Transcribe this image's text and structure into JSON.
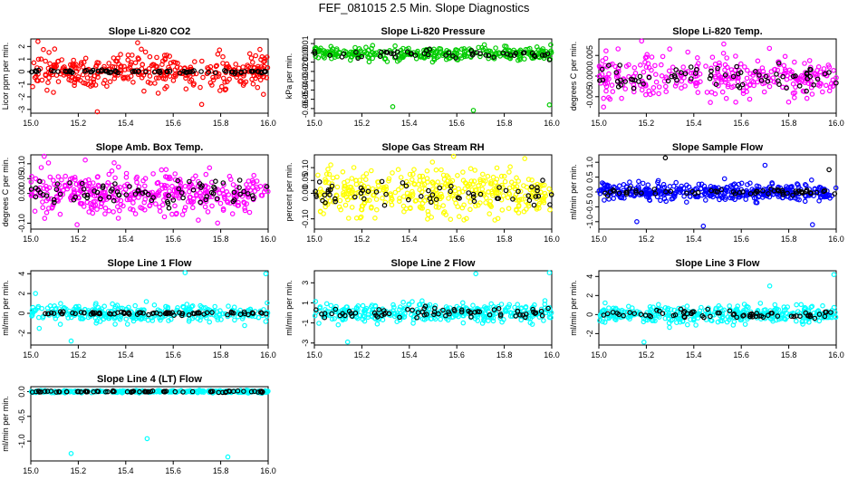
{
  "title": "FEF_081015  2.5 Min. Slope Diagnostics",
  "colors": {
    "red": "#ff0000",
    "green": "#00cc00",
    "magenta": "#ff00ff",
    "yellow": "#ffff00",
    "blue": "#0000ff",
    "cyan": "#00ffff",
    "black": "#000000"
  },
  "chart_data": [
    {
      "type": "scatter",
      "title": "Slope Li-820 CO2",
      "ylabel": "Licor ppm per min.",
      "xlim": [
        15.0,
        16.0
      ],
      "ylim": [
        -3.3,
        2.6
      ],
      "xticks": [
        15.0,
        15.2,
        15.4,
        15.6,
        15.8,
        16.0
      ],
      "yticks": [
        -3,
        -2,
        -1,
        0,
        1,
        2
      ],
      "point_color": "red",
      "series": [
        {
          "name": "all",
          "color": "red",
          "n": 350,
          "center": 0.0,
          "spread": 1.2,
          "outliers": [
            [
              15.03,
              2.4
            ],
            [
              15.28,
              -3.2
            ],
            [
              15.45,
              2.3
            ],
            [
              15.72,
              -2.6
            ],
            [
              15.98,
              -1.8
            ]
          ]
        },
        {
          "name": "subset",
          "color": "black",
          "n": 80,
          "center": 0.0,
          "spread": 0.12,
          "outliers": []
        }
      ]
    },
    {
      "type": "scatter",
      "title": "Slope Li-820 Pressure",
      "ylabel": "kPa per min.",
      "xlim": [
        15.0,
        16.0
      ],
      "ylim": [
        -0.065,
        0.015
      ],
      "xticks": [
        15.0,
        15.2,
        15.4,
        15.6,
        15.8,
        16.0
      ],
      "yticks": [
        -0.06,
        -0.05,
        -0.04,
        -0.03,
        -0.02,
        -0.01,
        0.0,
        0.01
      ],
      "point_color": "green",
      "series": [
        {
          "name": "all",
          "color": "green",
          "n": 300,
          "center": -0.001,
          "spread": 0.006,
          "outliers": [
            [
              15.33,
              -0.058
            ],
            [
              15.67,
              -0.062
            ],
            [
              15.99,
              -0.056
            ]
          ]
        },
        {
          "name": "subset",
          "color": "black",
          "n": 50,
          "center": -0.001,
          "spread": 0.004,
          "outliers": []
        }
      ]
    },
    {
      "type": "scatter",
      "title": "Slope Li-820 Temp.",
      "ylabel": "degrees C per min.",
      "xlim": [
        15.0,
        16.0
      ],
      "ylim": [
        -0.009,
        0.009
      ],
      "xticks": [
        15.0,
        15.2,
        15.4,
        15.6,
        15.8,
        16.0
      ],
      "yticks": [
        -0.005,
        0.0,
        0.005
      ],
      "point_color": "magenta",
      "series": [
        {
          "name": "all",
          "color": "magenta",
          "n": 320,
          "center": 0.0,
          "spread": 0.0045,
          "outliers": [
            [
              15.18,
              0.0085
            ],
            [
              15.02,
              -0.0075
            ]
          ]
        },
        {
          "name": "subset",
          "color": "black",
          "n": 70,
          "center": 0.0,
          "spread": 0.003,
          "outliers": []
        }
      ]
    },
    {
      "type": "scatter",
      "title": "Slope Amb. Box Temp.",
      "ylabel": "degrees C per min.",
      "xlim": [
        15.0,
        16.0
      ],
      "ylim": [
        -0.12,
        0.13
      ],
      "xticks": [
        15.0,
        15.2,
        15.4,
        15.6,
        15.8,
        16.0
      ],
      "yticks": [
        -0.1,
        0.0,
        0.05,
        0.1
      ],
      "point_color": "magenta",
      "series": [
        {
          "name": "all",
          "color": "magenta",
          "n": 420,
          "center": 0.0,
          "spread": 0.07,
          "outliers": []
        },
        {
          "name": "subset",
          "color": "black",
          "n": 80,
          "center": 0.0,
          "spread": 0.04,
          "outliers": []
        }
      ]
    },
    {
      "type": "scatter",
      "title": "Slope Gas Stream RH",
      "ylabel": "percent per min.",
      "xlim": [
        15.0,
        16.0
      ],
      "ylim": [
        -0.14,
        0.15
      ],
      "xticks": [
        15.0,
        15.2,
        15.4,
        15.6,
        15.8,
        16.0
      ],
      "yticks": [
        -0.1,
        0.0,
        0.05,
        0.1
      ],
      "point_color": "yellow",
      "series": [
        {
          "name": "all",
          "color": "yellow",
          "n": 400,
          "center": 0.0,
          "spread": 0.08,
          "outliers": []
        },
        {
          "name": "subset",
          "color": "black",
          "n": 60,
          "center": 0.0,
          "spread": 0.035,
          "outliers": []
        }
      ]
    },
    {
      "type": "scatter",
      "title": "Slope Sample Flow",
      "ylabel": "ml/min per min.",
      "xlim": [
        15.0,
        16.0
      ],
      "ylim": [
        -1.25,
        1.25
      ],
      "xticks": [
        15.0,
        15.2,
        15.4,
        15.6,
        15.8,
        16.0
      ],
      "yticks": [
        -1.0,
        -0.5,
        0.0,
        0.5,
        1.0
      ],
      "point_color": "blue",
      "series": [
        {
          "name": "all",
          "color": "blue",
          "n": 400,
          "center": 0.0,
          "spread": 0.25,
          "outliers": [
            [
              15.16,
              -1.0
            ],
            [
              15.44,
              -1.15
            ],
            [
              15.7,
              0.9
            ],
            [
              15.9,
              -1.1
            ]
          ]
        },
        {
          "name": "subset",
          "color": "black",
          "n": 60,
          "center": 0.0,
          "spread": 0.1,
          "outliers": [
            [
              15.28,
              1.15
            ],
            [
              15.97,
              0.75
            ]
          ]
        }
      ]
    },
    {
      "type": "scatter",
      "title": "Slope Line 1 Flow",
      "ylabel": "ml/min per min.",
      "xlim": [
        15.0,
        16.0
      ],
      "ylim": [
        -3.2,
        4.3
      ],
      "xticks": [
        15.0,
        15.2,
        15.4,
        15.6,
        15.8,
        16.0
      ],
      "yticks": [
        -2,
        0,
        2,
        4
      ],
      "point_color": "cyan",
      "series": [
        {
          "name": "all",
          "color": "cyan",
          "n": 320,
          "center": 0.0,
          "spread": 0.8,
          "outliers": [
            [
              15.17,
              -2.8
            ],
            [
              15.65,
              4.1
            ],
            [
              15.99,
              4.0
            ],
            [
              15.02,
              2.0
            ]
          ]
        },
        {
          "name": "subset",
          "color": "black",
          "n": 80,
          "center": 0.0,
          "spread": 0.15,
          "outliers": []
        }
      ]
    },
    {
      "type": "scatter",
      "title": "Slope Line 2 Flow",
      "ylabel": "ml/min per min.",
      "xlim": [
        15.0,
        16.0
      ],
      "ylim": [
        -3.2,
        4.2
      ],
      "xticks": [
        15.0,
        15.2,
        15.4,
        15.6,
        15.8,
        16.0
      ],
      "yticks": [
        -3,
        -1,
        1,
        3
      ],
      "point_color": "cyan",
      "series": [
        {
          "name": "all",
          "color": "cyan",
          "n": 350,
          "center": 0.0,
          "spread": 0.8,
          "outliers": [
            [
              15.14,
              -2.9
            ],
            [
              15.68,
              3.9
            ],
            [
              15.99,
              4.0
            ]
          ]
        },
        {
          "name": "subset",
          "color": "black",
          "n": 70,
          "center": 0.0,
          "spread": 0.5,
          "outliers": []
        }
      ]
    },
    {
      "type": "scatter",
      "title": "Slope Line 3 Flow",
      "ylabel": "ml/min per min.",
      "xlim": [
        15.0,
        16.0
      ],
      "ylim": [
        -3.2,
        4.6
      ],
      "xticks": [
        15.0,
        15.2,
        15.4,
        15.6,
        15.8,
        16.0
      ],
      "yticks": [
        -2,
        0,
        2,
        4
      ],
      "point_color": "cyan",
      "series": [
        {
          "name": "all",
          "color": "cyan",
          "n": 350,
          "center": 0.0,
          "spread": 0.8,
          "outliers": [
            [
              15.19,
              -2.9
            ],
            [
              15.99,
              4.2
            ],
            [
              15.72,
              3.0
            ]
          ]
        },
        {
          "name": "subset",
          "color": "black",
          "n": 70,
          "center": 0.0,
          "spread": 0.45,
          "outliers": []
        }
      ]
    },
    {
      "type": "scatter",
      "title": "Slope Line 4 (LT) Flow",
      "ylabel": "ml/min per min.",
      "xlim": [
        15.0,
        16.0
      ],
      "ylim": [
        -1.4,
        0.1
      ],
      "xticks": [
        15.0,
        15.2,
        15.4,
        15.6,
        15.8,
        16.0
      ],
      "yticks": [
        -1.0,
        -0.5,
        0.0
      ],
      "point_color": "cyan",
      "series": [
        {
          "name": "all",
          "color": "cyan",
          "n": 300,
          "center": 0.0,
          "spread": 0.02,
          "outliers": [
            [
              15.17,
              -1.25
            ],
            [
              15.49,
              -0.95
            ],
            [
              15.83,
              -1.32
            ]
          ]
        },
        {
          "name": "subset",
          "color": "black",
          "n": 70,
          "center": 0.0,
          "spread": 0.015,
          "outliers": []
        }
      ]
    }
  ]
}
